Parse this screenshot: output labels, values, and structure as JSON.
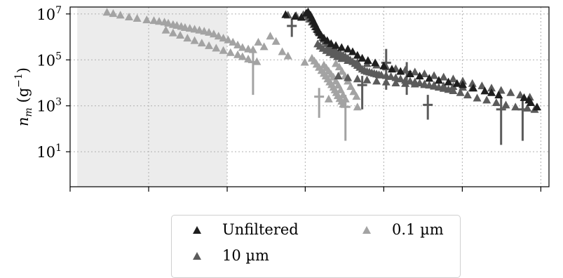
{
  "chart_data": {
    "type": "scatter",
    "xlabel": "",
    "ylabel": "n_m (g⁻¹)",
    "ylabel_parts": {
      "sym": "n",
      "sub": "m",
      "unit_open": "(g",
      "unit_exp": "−1",
      "unit_close": ")"
    },
    "y_scale": "log",
    "ylim": [
      0.3,
      20000000
    ],
    "xlim": [
      0,
      1
    ],
    "y_ticks": [
      {
        "base": "10",
        "exp": "7",
        "value": 10000000
      },
      {
        "base": "10",
        "exp": "5",
        "value": 100000
      },
      {
        "base": "10",
        "exp": "3",
        "value": 1000
      },
      {
        "base": "10",
        "exp": "1",
        "value": 10
      }
    ],
    "x_tick_positions": [
      0.0,
      0.164,
      0.328,
      0.491,
      0.655,
      0.819,
      0.983
    ],
    "grid": true,
    "shaded_region": {
      "x_range": [
        0.015,
        0.328
      ],
      "color": "#ececec"
    },
    "legend_position": "bottom",
    "series": [
      {
        "name": "Unfiltered",
        "color": "#1e1e1e",
        "points": [
          [
            0.45,
            9500000
          ],
          [
            0.47,
            8000000
          ],
          [
            0.483,
            7200000
          ],
          [
            0.493,
            11000000
          ],
          [
            0.497,
            12500000
          ],
          [
            0.502,
            9000000
          ],
          [
            0.505,
            6800000
          ],
          [
            0.508,
            5000000
          ],
          [
            0.511,
            3800000
          ],
          [
            0.514,
            2800000
          ],
          [
            0.517,
            2100000
          ],
          [
            0.52,
            1600000
          ],
          [
            0.524,
            1200000
          ],
          [
            0.53,
            900000
          ],
          [
            0.537,
            700000
          ],
          [
            0.545,
            520000
          ],
          [
            0.555,
            430000
          ],
          [
            0.567,
            350000
          ],
          [
            0.58,
            300000
          ],
          [
            0.59,
            230000
          ],
          [
            0.6,
            160000
          ],
          [
            0.61,
            120000
          ],
          [
            0.622,
            95000
          ],
          [
            0.637,
            75000
          ],
          [
            0.655,
            55000
          ],
          [
            0.672,
            40000
          ],
          [
            0.69,
            32000
          ],
          [
            0.71,
            25000
          ],
          [
            0.73,
            20000
          ],
          [
            0.75,
            16000
          ],
          [
            0.77,
            13000
          ],
          [
            0.79,
            11000
          ],
          [
            0.808,
            9500
          ],
          [
            0.82,
            8500
          ],
          [
            0.842,
            6000
          ],
          [
            0.866,
            4500
          ],
          [
            0.88,
            3800
          ],
          [
            0.895,
            3000
          ],
          [
            0.948,
            2300
          ],
          [
            0.958,
            1800
          ],
          [
            0.962,
            1400
          ],
          [
            0.975,
            900
          ]
        ]
      },
      {
        "name": "0.1 µm",
        "color": "#a3a3a3",
        "points": [
          [
            0.077,
            12000000
          ],
          [
            0.09,
            10500000
          ],
          [
            0.105,
            9000000
          ],
          [
            0.123,
            7500000
          ],
          [
            0.14,
            6500000
          ],
          [
            0.16,
            5600000
          ],
          [
            0.175,
            5200000
          ],
          [
            0.186,
            4800000
          ],
          [
            0.197,
            4500000
          ],
          [
            0.205,
            4000000
          ],
          [
            0.215,
            3500000
          ],
          [
            0.223,
            3200000
          ],
          [
            0.232,
            2900000
          ],
          [
            0.24,
            2600000
          ],
          [
            0.25,
            2400000
          ],
          [
            0.26,
            2200000
          ],
          [
            0.27,
            2000000
          ],
          [
            0.28,
            1800000
          ],
          [
            0.29,
            1600000
          ],
          [
            0.3,
            1350000
          ],
          [
            0.31,
            1100000
          ],
          [
            0.32,
            900000
          ],
          [
            0.33,
            750000
          ],
          [
            0.34,
            600000
          ],
          [
            0.35,
            450000
          ],
          [
            0.36,
            350000
          ],
          [
            0.372,
            300000
          ],
          [
            0.382,
            280000
          ],
          [
            0.393,
            600000
          ],
          [
            0.405,
            380000
          ],
          [
            0.418,
            1100000
          ],
          [
            0.43,
            650000
          ],
          [
            0.443,
            230000
          ],
          [
            0.455,
            150000
          ],
          [
            0.2,
            2000000
          ],
          [
            0.215,
            1500000
          ],
          [
            0.23,
            1200000
          ],
          [
            0.245,
            900000
          ],
          [
            0.26,
            700000
          ],
          [
            0.275,
            550000
          ],
          [
            0.29,
            420000
          ],
          [
            0.305,
            330000
          ],
          [
            0.32,
            260000
          ],
          [
            0.335,
            210000
          ],
          [
            0.35,
            170000
          ],
          [
            0.36,
            140000
          ],
          [
            0.372,
            110000
          ],
          [
            0.39,
            85000
          ],
          [
            0.49,
            80000
          ],
          [
            0.505,
            120000
          ],
          [
            0.51,
            90000
          ],
          [
            0.515,
            65000
          ],
          [
            0.52,
            48000
          ],
          [
            0.525,
            35000
          ],
          [
            0.53,
            26000
          ],
          [
            0.534,
            20000
          ],
          [
            0.538,
            15000
          ],
          [
            0.542,
            11000
          ],
          [
            0.546,
            8500
          ],
          [
            0.55,
            6500
          ],
          [
            0.553,
            5000
          ],
          [
            0.556,
            3800
          ],
          [
            0.559,
            2800
          ],
          [
            0.563,
            2100
          ],
          [
            0.567,
            1600
          ],
          [
            0.57,
            1200
          ],
          [
            0.53,
            60000
          ],
          [
            0.535,
            45000
          ],
          [
            0.54,
            33000
          ],
          [
            0.545,
            24000
          ],
          [
            0.55,
            18000
          ],
          [
            0.555,
            12000
          ],
          [
            0.56,
            8000
          ],
          [
            0.565,
            5000
          ],
          [
            0.57,
            3000
          ],
          [
            0.575,
            2000
          ],
          [
            0.555,
            70000
          ],
          [
            0.562,
            50000
          ],
          [
            0.568,
            32000
          ],
          [
            0.574,
            20000
          ],
          [
            0.58,
            12000
          ],
          [
            0.586,
            7000
          ],
          [
            0.592,
            4200
          ],
          [
            0.598,
            2600
          ],
          [
            0.54,
            2000
          ],
          [
            0.6,
            900
          ]
        ]
      },
      {
        "name": "10 µm",
        "color": "#5b5b5b",
        "points": [
          [
            0.455,
            9000000
          ],
          [
            0.472,
            8500000
          ],
          [
            0.487,
            9500000
          ],
          [
            0.497,
            7500000
          ],
          [
            0.5,
            6000000
          ],
          [
            0.505,
            4500000
          ],
          [
            0.509,
            3500000
          ],
          [
            0.512,
            2800000
          ],
          [
            0.515,
            2200000
          ],
          [
            0.518,
            1800000
          ],
          [
            0.521,
            1500000
          ],
          [
            0.524,
            1200000
          ],
          [
            0.527,
            950000
          ],
          [
            0.53,
            800000
          ],
          [
            0.533,
            650000
          ],
          [
            0.537,
            520000
          ],
          [
            0.54,
            420000
          ],
          [
            0.544,
            350000
          ],
          [
            0.548,
            300000
          ],
          [
            0.552,
            260000
          ],
          [
            0.556,
            230000
          ],
          [
            0.56,
            200000
          ],
          [
            0.565,
            180000
          ],
          [
            0.57,
            160000
          ],
          [
            0.575,
            140000
          ],
          [
            0.58,
            120000
          ],
          [
            0.585,
            100000
          ],
          [
            0.59,
            85000
          ],
          [
            0.595,
            70000
          ],
          [
            0.6,
            58000
          ],
          [
            0.605,
            48000
          ],
          [
            0.61,
            40000
          ],
          [
            0.615,
            35000
          ],
          [
            0.62,
            32000
          ],
          [
            0.625,
            30000
          ],
          [
            0.63,
            28000
          ],
          [
            0.635,
            26000
          ],
          [
            0.64,
            24500
          ],
          [
            0.645,
            23000
          ],
          [
            0.65,
            22000
          ],
          [
            0.66,
            21000
          ],
          [
            0.67,
            19000
          ],
          [
            0.68,
            17000
          ],
          [
            0.69,
            15000
          ],
          [
            0.7,
            13000
          ],
          [
            0.71,
            12000
          ],
          [
            0.72,
            11000
          ],
          [
            0.73,
            10000
          ],
          [
            0.74,
            9000
          ],
          [
            0.75,
            8000
          ],
          [
            0.76,
            7200
          ],
          [
            0.77,
            6500
          ],
          [
            0.78,
            5800
          ],
          [
            0.79,
            5200
          ],
          [
            0.8,
            4600
          ],
          [
            0.815,
            3800
          ],
          [
            0.83,
            3000
          ],
          [
            0.85,
            2200
          ],
          [
            0.87,
            1800
          ],
          [
            0.89,
            1400
          ],
          [
            0.91,
            1100
          ],
          [
            0.93,
            900
          ],
          [
            0.955,
            800
          ],
          [
            0.97,
            700
          ],
          [
            0.517,
            500000
          ],
          [
            0.522,
            400000
          ],
          [
            0.528,
            320000
          ],
          [
            0.535,
            260000
          ],
          [
            0.542,
            210000
          ],
          [
            0.55,
            170000
          ],
          [
            0.558,
            140000
          ],
          [
            0.567,
            115000
          ],
          [
            0.58,
            95000
          ],
          [
            0.6,
            80000
          ],
          [
            0.62,
            70000
          ],
          [
            0.64,
            60000
          ],
          [
            0.66,
            50000
          ],
          [
            0.68,
            42000
          ],
          [
            0.7,
            36000
          ],
          [
            0.72,
            30000
          ],
          [
            0.74,
            25000
          ],
          [
            0.76,
            21000
          ],
          [
            0.78,
            18000
          ],
          [
            0.8,
            15000
          ],
          [
            0.82,
            12000
          ],
          [
            0.84,
            9500
          ],
          [
            0.86,
            7500
          ],
          [
            0.88,
            6000
          ],
          [
            0.9,
            4800
          ],
          [
            0.92,
            3800
          ],
          [
            0.94,
            3000
          ],
          [
            0.96,
            2400
          ],
          [
            0.56,
            20000
          ],
          [
            0.58,
            17000
          ],
          [
            0.6,
            15000
          ],
          [
            0.62,
            13500
          ],
          [
            0.64,
            12000
          ],
          [
            0.66,
            11000
          ],
          [
            0.68,
            10000
          ],
          [
            0.7,
            9500
          ],
          [
            0.72,
            9000
          ],
          [
            0.74,
            8500
          ],
          [
            0.76,
            8000
          ],
          [
            0.78,
            7500
          ],
          [
            0.8,
            7000
          ],
          [
            0.82,
            6500
          ],
          [
            0.84,
            6000
          ]
        ]
      }
    ],
    "error_bars": [
      {
        "color": "#a3a3a3",
        "x": 0.382,
        "y": 80000,
        "low": 3000,
        "high": 250000
      },
      {
        "color": "#a3a3a3",
        "x": 0.575,
        "y": 900,
        "low": 30,
        "high": 3000
      },
      {
        "color": "#a3a3a3",
        "x": 0.52,
        "y": 2500,
        "low": 300,
        "high": 6000
      },
      {
        "color": "#5b5b5b",
        "x": 0.463,
        "y": 3000000,
        "low": 1000000,
        "high": 6000000
      },
      {
        "color": "#5b5b5b",
        "x": 0.61,
        "y": 8000,
        "low": 700,
        "high": 20000
      },
      {
        "color": "#5b5b5b",
        "x": 0.66,
        "y": 75000,
        "low": 5000,
        "high": 300000
      },
      {
        "color": "#5b5b5b",
        "x": 0.703,
        "y": 30000,
        "low": 3000,
        "high": 80000
      },
      {
        "color": "#5b5b5b",
        "x": 0.747,
        "y": 1100,
        "low": 250,
        "high": 3000
      },
      {
        "color": "#5b5b5b",
        "x": 0.9,
        "y": 700,
        "low": 20,
        "high": 2300
      },
      {
        "color": "#5b5b5b",
        "x": 0.945,
        "y": 700,
        "low": 30,
        "high": 2300
      }
    ]
  },
  "legend": {
    "items": [
      {
        "label": "Unfiltered",
        "color": "#1e1e1e"
      },
      {
        "label": "0.1 µm",
        "color": "#a3a3a3"
      },
      {
        "label": "10 µm",
        "color": "#5b5b5b"
      }
    ]
  }
}
